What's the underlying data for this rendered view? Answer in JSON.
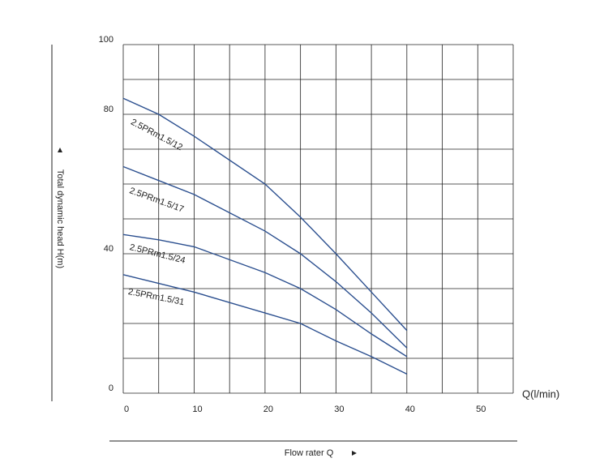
{
  "chart_data": {
    "type": "line",
    "x_label": "Flow rater Q",
    "y_label": "Total dynamic head H(m)",
    "x_unit_label": "Q(l/min)",
    "x": [
      0,
      5,
      10,
      20,
      25,
      30,
      35,
      40
    ],
    "series": [
      {
        "name": "2.5PRm1.5/12",
        "color": "#2b4f8f",
        "values": [
          84.6,
          80,
          73.7,
          60,
          50.5,
          40,
          29,
          18
        ]
      },
      {
        "name": "2.5PRm1.5/17",
        "color": "#2b4f8f",
        "values": [
          65,
          61,
          57,
          46.5,
          40,
          32,
          23,
          13
        ]
      },
      {
        "name": "2.5PRm1.5/24",
        "color": "#2b4f8f",
        "values": [
          45.5,
          44,
          42,
          34.6,
          30,
          24,
          17,
          10.5
        ]
      },
      {
        "name": "2.5PRm1.5/31",
        "color": "#2b4f8f",
        "values": [
          34,
          31.5,
          29,
          23,
          20,
          15,
          10.5,
          5.5
        ]
      }
    ],
    "xlim": [
      0,
      55
    ],
    "ylim": [
      0,
      100
    ],
    "xticks": [
      0,
      10,
      20,
      30,
      40,
      50
    ],
    "yticks": [
      0,
      40,
      80,
      100
    ],
    "xgrid": [
      0,
      5,
      10,
      15,
      20,
      25,
      30,
      35,
      40,
      45,
      50,
      55
    ],
    "ygrid": [
      0,
      10,
      20,
      30,
      40,
      50,
      60,
      70,
      80,
      90,
      100
    ],
    "grid": true
  }
}
